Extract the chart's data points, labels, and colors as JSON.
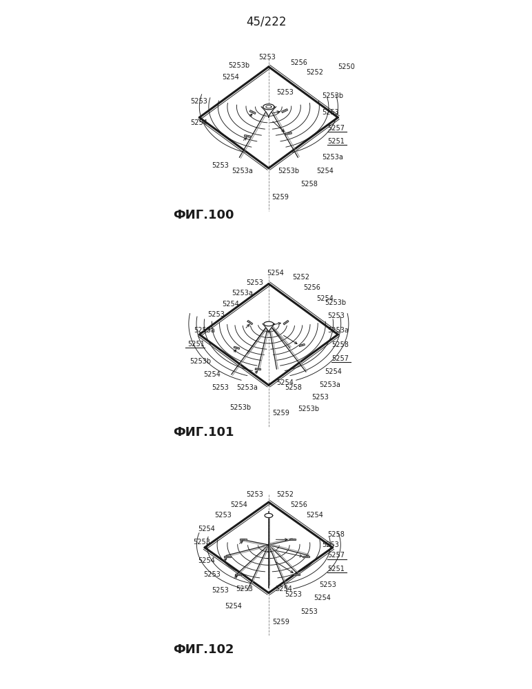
{
  "page_label": "45/222",
  "fig_labels": [
    "ФИГ.100",
    "ФИГ.101",
    "ФИГ.102"
  ],
  "bg_color": "#ffffff",
  "line_color": "#1a1a1a",
  "label_fontsize": 7.0,
  "fig_fontsize": 13,
  "page_fontsize": 12
}
